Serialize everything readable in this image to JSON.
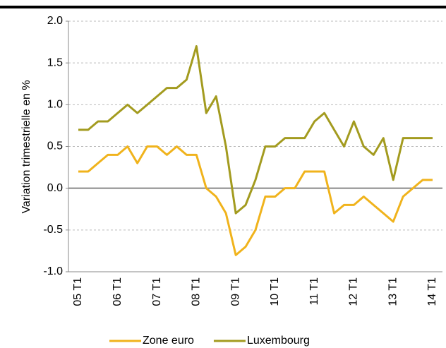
{
  "chart_data": {
    "type": "line",
    "ylabel": "Variation trimestrielle en %",
    "categories": [
      "05 T1",
      null,
      null,
      null,
      "06 T1",
      null,
      null,
      null,
      "07 T1",
      null,
      null,
      null,
      "08 T1",
      null,
      null,
      null,
      "09 T1",
      null,
      null,
      null,
      "10 T1",
      null,
      null,
      null,
      "11 T1",
      null,
      null,
      null,
      "12 T1",
      null,
      null,
      null,
      "13 T1",
      null,
      null,
      null,
      "14 T1"
    ],
    "series": [
      {
        "name": "Zone euro",
        "color": "#f0b31c",
        "values": [
          0.2,
          0.2,
          0.3,
          0.4,
          0.4,
          0.5,
          0.3,
          0.5,
          0.5,
          0.4,
          0.5,
          0.4,
          0.4,
          0.0,
          -0.1,
          -0.3,
          -0.8,
          -0.7,
          -0.5,
          -0.1,
          -0.1,
          0.0,
          0.0,
          0.2,
          0.2,
          0.2,
          -0.3,
          -0.2,
          -0.2,
          -0.1,
          -0.2,
          -0.3,
          -0.4,
          -0.1,
          0.0,
          0.1,
          0.1
        ]
      },
      {
        "name": "Luxembourg",
        "color": "#a39b1f",
        "values": [
          0.7,
          0.7,
          0.8,
          0.8,
          0.9,
          1.0,
          0.9,
          1.0,
          1.1,
          1.2,
          1.2,
          1.3,
          1.7,
          0.9,
          1.1,
          0.5,
          -0.3,
          -0.2,
          0.1,
          0.5,
          0.5,
          0.6,
          0.6,
          0.6,
          0.8,
          0.9,
          0.7,
          0.5,
          0.8,
          0.5,
          0.4,
          0.6,
          0.1,
          0.6,
          0.6,
          0.6,
          0.6
        ]
      }
    ],
    "ylim": [
      -1,
      2
    ],
    "yticks": [
      {
        "value": -1,
        "label": "-1.0"
      },
      -0.5,
      {
        "value": 0,
        "label": "0.0"
      },
      0.5,
      {
        "value": 1,
        "label": "1.0"
      },
      1.5,
      {
        "value": 2,
        "label": "2.0"
      }
    ],
    "grid": true,
    "legend": "bottom"
  }
}
